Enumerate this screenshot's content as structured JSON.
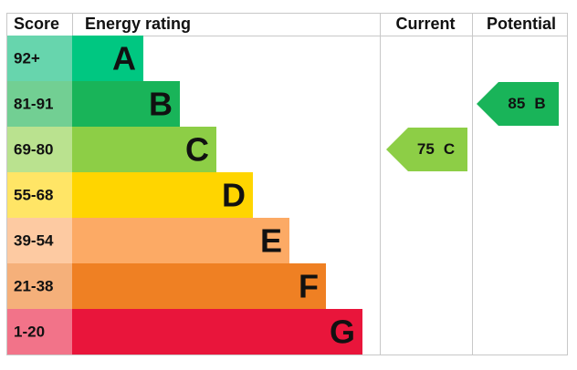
{
  "header": {
    "score": "Score",
    "rating": "Energy rating",
    "current": "Current",
    "potential": "Potential"
  },
  "bands": [
    {
      "score": "92+",
      "letter": "A",
      "color": "#00c781",
      "score_color": "#67d5ad"
    },
    {
      "score": "81-91",
      "letter": "B",
      "color": "#19b459",
      "score_color": "#72cf93"
    },
    {
      "score": "69-80",
      "letter": "C",
      "color": "#8dce46",
      "score_color": "#bae28f"
    },
    {
      "score": "55-68",
      "letter": "D",
      "color": "#ffd500",
      "score_color": "#ffe566"
    },
    {
      "score": "39-54",
      "letter": "E",
      "color": "#fcaa65",
      "score_color": "#fdcaa2"
    },
    {
      "score": "21-38",
      "letter": "F",
      "color": "#ef8023",
      "score_color": "#f5b07a"
    },
    {
      "score": "1-20",
      "letter": "G",
      "color": "#e9153b",
      "score_color": "#f27389"
    }
  ],
  "current": {
    "value": 75,
    "band": "C"
  },
  "potential": {
    "value": 85,
    "band": "B"
  }
}
